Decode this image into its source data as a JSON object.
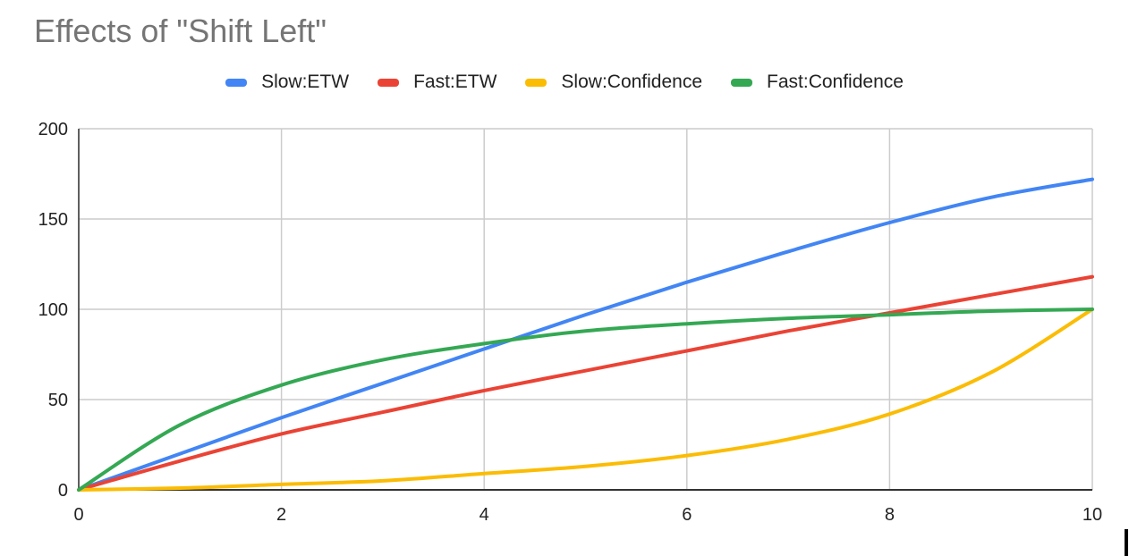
{
  "chart_data": {
    "type": "line",
    "title": "Effects of \"Shift Left\"",
    "xlabel": "",
    "ylabel": "",
    "xlim": [
      0,
      10
    ],
    "ylim": [
      0,
      200
    ],
    "x_ticks": [
      "0",
      "2",
      "4",
      "6",
      "8",
      "10"
    ],
    "y_ticks": [
      "0",
      "50",
      "100",
      "150",
      "200"
    ],
    "grid": true,
    "legend_position": "top",
    "x": [
      0,
      1,
      2,
      3,
      4,
      5,
      6,
      7,
      8,
      9,
      10
    ],
    "series": [
      {
        "name": "Slow:ETW",
        "color": "#4285F4",
        "values": [
          0,
          20,
          40,
          59,
          78,
          97,
          115,
          132,
          148,
          162,
          172
        ]
      },
      {
        "name": "Fast:ETW",
        "color": "#EA4335",
        "values": [
          0,
          16,
          31,
          43,
          55,
          66,
          77,
          88,
          98,
          108,
          118
        ]
      },
      {
        "name": "Slow:Confidence",
        "color": "#FBBC04",
        "values": [
          0,
          1,
          3,
          5,
          9,
          13,
          19,
          28,
          42,
          65,
          100
        ]
      },
      {
        "name": "Fast:Confidence",
        "color": "#34A853",
        "values": [
          0,
          36,
          58,
          72,
          81,
          88,
          92,
          95,
          97,
          99,
          100
        ]
      }
    ]
  }
}
